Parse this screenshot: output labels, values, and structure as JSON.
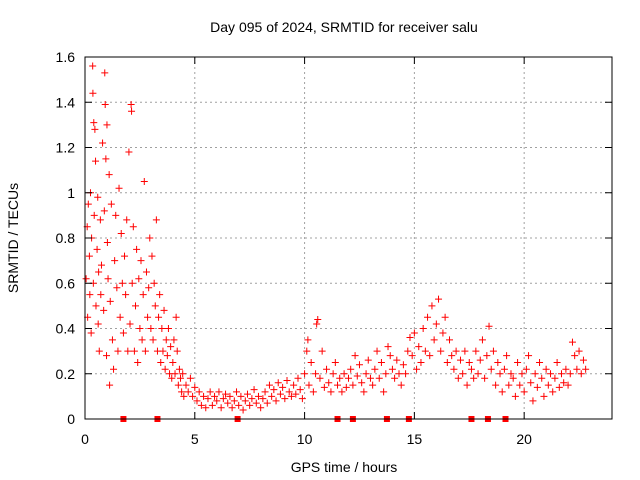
{
  "chart_data": {
    "type": "scatter",
    "title": "Day 095 of 2024, SRMTID for receiver salu",
    "xlabel": "GPS time / hours",
    "ylabel": "SRMTID / TECUs",
    "xlim": [
      0,
      24
    ],
    "ylim": [
      0,
      1.6
    ],
    "x_ticks": [
      0,
      5,
      10,
      15,
      20
    ],
    "x_tick_labels": [
      "0",
      "5",
      "10",
      "15",
      "20"
    ],
    "y_ticks": [
      0,
      0.2,
      0.4,
      0.6,
      0.8,
      1.0,
      1.2,
      1.4,
      1.6
    ],
    "y_tick_labels": [
      "0",
      "0.2",
      "0.4",
      "0.6",
      "0.8",
      "1",
      "1.2",
      "1.4",
      "1.6"
    ],
    "grid": true,
    "marker": "plus",
    "color": "#ff0000",
    "series": [
      {
        "name": "SRMTID",
        "points": [
          [
            0.05,
            0.62
          ],
          [
            0.1,
            0.85
          ],
          [
            0.12,
            0.45
          ],
          [
            0.15,
            0.95
          ],
          [
            0.2,
            0.72
          ],
          [
            0.22,
            0.55
          ],
          [
            0.25,
            1.0
          ],
          [
            0.28,
            0.38
          ],
          [
            0.3,
            0.8
          ],
          [
            0.35,
            1.56
          ],
          [
            0.36,
            1.44
          ],
          [
            0.38,
            0.6
          ],
          [
            0.4,
            1.31
          ],
          [
            0.42,
            0.9
          ],
          [
            0.45,
            1.28
          ],
          [
            0.48,
            1.14
          ],
          [
            0.5,
            0.5
          ],
          [
            0.55,
            0.75
          ],
          [
            0.58,
            0.98
          ],
          [
            0.6,
            0.42
          ],
          [
            0.62,
            0.65
          ],
          [
            0.65,
            0.3
          ],
          [
            0.7,
            0.88
          ],
          [
            0.72,
            0.55
          ],
          [
            0.75,
            0.68
          ],
          [
            0.8,
            1.22
          ],
          [
            0.85,
            0.48
          ],
          [
            0.88,
            0.92
          ],
          [
            0.9,
            1.53
          ],
          [
            0.92,
            1.39
          ],
          [
            0.95,
            1.15
          ],
          [
            0.98,
            0.28
          ],
          [
            1.0,
            1.3
          ],
          [
            1.02,
            0.78
          ],
          [
            1.05,
            0.62
          ],
          [
            1.1,
            1.08
          ],
          [
            1.12,
            0.15
          ],
          [
            1.15,
            0.52
          ],
          [
            1.2,
            0.95
          ],
          [
            1.25,
            0.35
          ],
          [
            1.3,
            0.22
          ],
          [
            1.35,
            0.7
          ],
          [
            1.4,
            0.9
          ],
          [
            1.45,
            0.58
          ],
          [
            1.5,
            0.3
          ],
          [
            1.55,
            1.02
          ],
          [
            1.6,
            0.45
          ],
          [
            1.65,
            0.82
          ],
          [
            1.7,
            0.6
          ],
          [
            1.75,
            0.38
          ],
          [
            1.8,
            0.72
          ],
          [
            1.85,
            0.55
          ],
          [
            1.9,
            0.88
          ],
          [
            1.95,
            0.3
          ],
          [
            2.0,
            1.18
          ],
          [
            2.05,
            0.42
          ],
          [
            2.1,
            1.39
          ],
          [
            2.12,
            1.36
          ],
          [
            2.15,
            0.6
          ],
          [
            2.2,
            0.85
          ],
          [
            2.25,
            0.3
          ],
          [
            2.3,
            0.5
          ],
          [
            2.35,
            0.75
          ],
          [
            2.4,
            0.25
          ],
          [
            2.45,
            0.62
          ],
          [
            2.5,
            0.4
          ],
          [
            2.55,
            0.7
          ],
          [
            2.6,
            0.35
          ],
          [
            2.65,
            0.55
          ],
          [
            2.7,
            1.05
          ],
          [
            2.75,
            0.3
          ],
          [
            2.8,
            0.65
          ],
          [
            2.85,
            0.45
          ],
          [
            2.9,
            0.58
          ],
          [
            2.95,
            0.8
          ],
          [
            3.0,
            0.4
          ],
          [
            3.05,
            0.72
          ],
          [
            3.1,
            0.35
          ],
          [
            3.15,
            0.6
          ],
          [
            3.2,
            0.5
          ],
          [
            3.25,
            0.88
          ],
          [
            3.3,
            0.3
          ],
          [
            3.35,
            0.45
          ],
          [
            3.4,
            0.55
          ],
          [
            3.45,
            0.25
          ],
          [
            3.5,
            0.4
          ],
          [
            3.55,
            0.3
          ],
          [
            3.6,
            0.48
          ],
          [
            3.65,
            0.22
          ],
          [
            3.7,
            0.35
          ],
          [
            3.75,
            0.28
          ],
          [
            3.8,
            0.4
          ],
          [
            3.85,
            0.2
          ],
          [
            3.9,
            0.32
          ],
          [
            3.95,
            0.18
          ],
          [
            4.0,
            0.25
          ],
          [
            4.05,
            0.35
          ],
          [
            4.1,
            0.2
          ],
          [
            4.15,
            0.45
          ],
          [
            4.2,
            0.3
          ],
          [
            4.25,
            0.15
          ],
          [
            4.3,
            0.22
          ],
          [
            4.35,
            0.18
          ],
          [
            4.4,
            0.12
          ],
          [
            4.45,
            0.2
          ],
          [
            4.5,
            0.1
          ],
          [
            4.6,
            0.15
          ],
          [
            4.7,
            0.12
          ],
          [
            4.8,
            0.18
          ],
          [
            4.9,
            0.1
          ],
          [
            5.0,
            0.14
          ],
          [
            5.1,
            0.08
          ],
          [
            5.2,
            0.12
          ],
          [
            5.3,
            0.06
          ],
          [
            5.4,
            0.1
          ],
          [
            5.5,
            0.05
          ],
          [
            5.6,
            0.09
          ],
          [
            5.7,
            0.12
          ],
          [
            5.8,
            0.06
          ],
          [
            5.9,
            0.1
          ],
          [
            6.0,
            0.08
          ],
          [
            6.1,
            0.12
          ],
          [
            6.2,
            0.05
          ],
          [
            6.3,
            0.09
          ],
          [
            6.4,
            0.11
          ],
          [
            6.5,
            0.07
          ],
          [
            6.6,
            0.1
          ],
          [
            6.7,
            0.05
          ],
          [
            6.8,
            0.08
          ],
          [
            6.9,
            0.12
          ],
          [
            7.0,
            0.06
          ],
          [
            7.1,
            0.1
          ],
          [
            7.2,
            0.04
          ],
          [
            7.3,
            0.08
          ],
          [
            7.4,
            0.11
          ],
          [
            7.5,
            0.06
          ],
          [
            7.6,
            0.09
          ],
          [
            7.7,
            0.13
          ],
          [
            7.8,
            0.07
          ],
          [
            7.9,
            0.1
          ],
          [
            8.0,
            0.05
          ],
          [
            8.1,
            0.09
          ],
          [
            8.2,
            0.12
          ],
          [
            8.3,
            0.07
          ],
          [
            8.4,
            0.15
          ],
          [
            8.5,
            0.1
          ],
          [
            8.6,
            0.13
          ],
          [
            8.7,
            0.08
          ],
          [
            8.8,
            0.16
          ],
          [
            8.9,
            0.11
          ],
          [
            9.0,
            0.14
          ],
          [
            9.1,
            0.09
          ],
          [
            9.2,
            0.17
          ],
          [
            9.3,
            0.12
          ],
          [
            9.4,
            0.1
          ],
          [
            9.5,
            0.15
          ],
          [
            9.6,
            0.11
          ],
          [
            9.7,
            0.18
          ],
          [
            9.8,
            0.13
          ],
          [
            9.9,
            0.09
          ],
          [
            10.0,
            0.2
          ],
          [
            10.1,
            0.3
          ],
          [
            10.15,
            0.35
          ],
          [
            10.2,
            0.15
          ],
          [
            10.3,
            0.25
          ],
          [
            10.4,
            0.12
          ],
          [
            10.5,
            0.2
          ],
          [
            10.55,
            0.42
          ],
          [
            10.6,
            0.44
          ],
          [
            10.7,
            0.18
          ],
          [
            10.8,
            0.3
          ],
          [
            10.9,
            0.14
          ],
          [
            11.0,
            0.22
          ],
          [
            11.1,
            0.16
          ],
          [
            11.2,
            0.12
          ],
          [
            11.3,
            0.2
          ],
          [
            11.4,
            0.25
          ],
          [
            11.5,
            0.15
          ],
          [
            11.6,
            0.18
          ],
          [
            11.7,
            0.12
          ],
          [
            11.8,
            0.2
          ],
          [
            11.9,
            0.14
          ],
          [
            12.0,
            0.18
          ],
          [
            12.1,
            0.22
          ],
          [
            12.2,
            0.15
          ],
          [
            12.3,
            0.28
          ],
          [
            12.4,
            0.19
          ],
          [
            12.5,
            0.24
          ],
          [
            12.6,
            0.16
          ],
          [
            12.7,
            0.12
          ],
          [
            12.8,
            0.2
          ],
          [
            12.9,
            0.26
          ],
          [
            13.0,
            0.18
          ],
          [
            13.1,
            0.15
          ],
          [
            13.2,
            0.22
          ],
          [
            13.3,
            0.3
          ],
          [
            13.4,
            0.18
          ],
          [
            13.5,
            0.25
          ],
          [
            13.6,
            0.12
          ],
          [
            13.7,
            0.2
          ],
          [
            13.8,
            0.32
          ],
          [
            13.9,
            0.28
          ],
          [
            14.0,
            0.22
          ],
          [
            14.1,
            0.18
          ],
          [
            14.2,
            0.26
          ],
          [
            14.3,
            0.2
          ],
          [
            14.4,
            0.15
          ],
          [
            14.5,
            0.24
          ],
          [
            14.6,
            0.2
          ],
          [
            14.7,
            0.3
          ],
          [
            14.8,
            0.36
          ],
          [
            14.9,
            0.28
          ],
          [
            15.0,
            0.38
          ],
          [
            15.1,
            0.22
          ],
          [
            15.2,
            0.32
          ],
          [
            15.3,
            0.25
          ],
          [
            15.4,
            0.4
          ],
          [
            15.5,
            0.3
          ],
          [
            15.6,
            0.45
          ],
          [
            15.7,
            0.28
          ],
          [
            15.8,
            0.5
          ],
          [
            15.9,
            0.35
          ],
          [
            16.0,
            0.42
          ],
          [
            16.1,
            0.53
          ],
          [
            16.2,
            0.3
          ],
          [
            16.3,
            0.38
          ],
          [
            16.4,
            0.45
          ],
          [
            16.5,
            0.25
          ],
          [
            16.6,
            0.35
          ],
          [
            16.7,
            0.28
          ],
          [
            16.8,
            0.22
          ],
          [
            16.9,
            0.3
          ],
          [
            17.0,
            0.18
          ],
          [
            17.1,
            0.26
          ],
          [
            17.2,
            0.2
          ],
          [
            17.3,
            0.3
          ],
          [
            17.4,
            0.15
          ],
          [
            17.5,
            0.25
          ],
          [
            17.6,
            0.22
          ],
          [
            17.7,
            0.18
          ],
          [
            17.8,
            0.3
          ],
          [
            17.9,
            0.2
          ],
          [
            18.0,
            0.26
          ],
          [
            18.1,
            0.35
          ],
          [
            18.2,
            0.18
          ],
          [
            18.3,
            0.28
          ],
          [
            18.4,
            0.41
          ],
          [
            18.5,
            0.22
          ],
          [
            18.6,
            0.3
          ],
          [
            18.7,
            0.15
          ],
          [
            18.8,
            0.25
          ],
          [
            18.9,
            0.2
          ],
          [
            19.0,
            0.12
          ],
          [
            19.1,
            0.22
          ],
          [
            19.2,
            0.28
          ],
          [
            19.3,
            0.15
          ],
          [
            19.4,
            0.2
          ],
          [
            19.5,
            0.18
          ],
          [
            19.6,
            0.1
          ],
          [
            19.7,
            0.25
          ],
          [
            19.8,
            0.15
          ],
          [
            19.9,
            0.2
          ],
          [
            20.0,
            0.12
          ],
          [
            20.1,
            0.22
          ],
          [
            20.2,
            0.28
          ],
          [
            20.3,
            0.16
          ],
          [
            20.4,
            0.08
          ],
          [
            20.5,
            0.2
          ],
          [
            20.6,
            0.14
          ],
          [
            20.7,
            0.25
          ],
          [
            20.8,
            0.18
          ],
          [
            20.9,
            0.1
          ],
          [
            21.0,
            0.22
          ],
          [
            21.1,
            0.15
          ],
          [
            21.2,
            0.2
          ],
          [
            21.3,
            0.12
          ],
          [
            21.4,
            0.18
          ],
          [
            21.5,
            0.25
          ],
          [
            21.6,
            0.14
          ],
          [
            21.7,
            0.2
          ],
          [
            21.8,
            0.16
          ],
          [
            21.9,
            0.22
          ],
          [
            22.0,
            0.15
          ],
          [
            22.1,
            0.2
          ],
          [
            22.2,
            0.34
          ],
          [
            22.3,
            0.28
          ],
          [
            22.4,
            0.22
          ],
          [
            22.5,
            0.3
          ],
          [
            22.6,
            0.2
          ],
          [
            22.7,
            0.26
          ],
          [
            22.8,
            0.22
          ]
        ]
      }
    ],
    "gap_markers_x": [
      1.75,
      3.3,
      6.95,
      11.5,
      12.2,
      13.75,
      14.75,
      17.6,
      18.35,
      19.15
    ]
  }
}
